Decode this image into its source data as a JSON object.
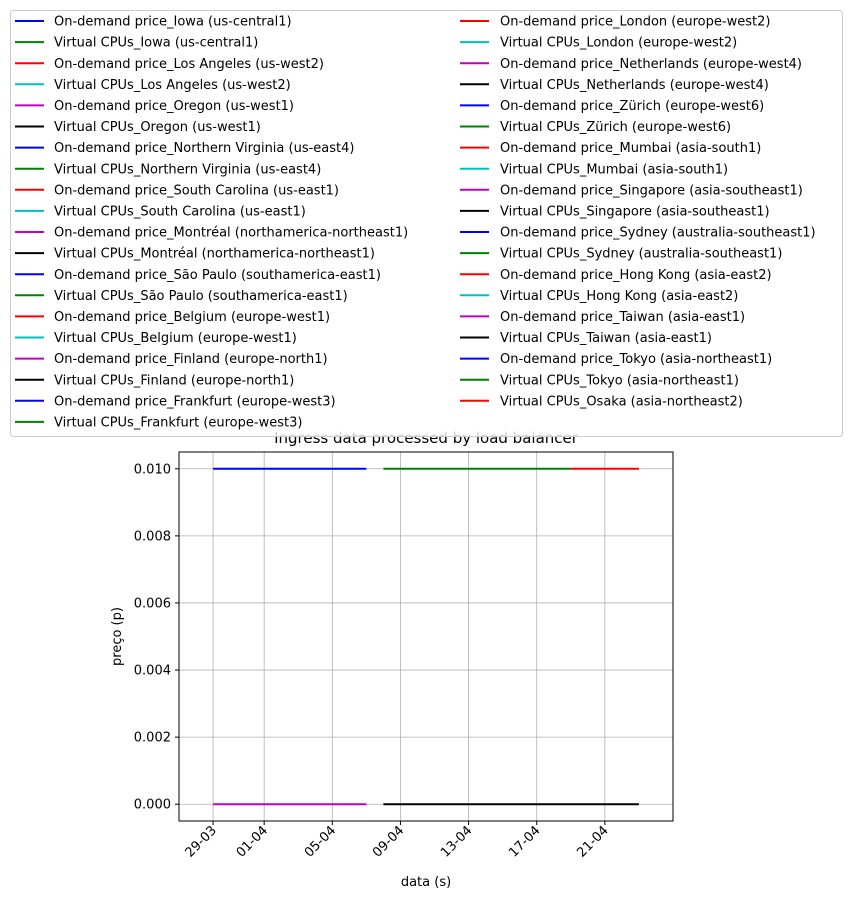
{
  "chart_data": {
    "type": "line",
    "title": "Ingress data processed by load balancer",
    "xlabel": "data (s)",
    "ylabel": "preço (p)",
    "grid": true,
    "legend_placement": "top (above plot, 2 columns)",
    "ylim": [
      -0.0005,
      0.0105
    ],
    "xlim": [
      "2021-03-27",
      "2021-04-25"
    ],
    "y_ticks": [
      0.0,
      0.002,
      0.004,
      0.006,
      0.008,
      0.01
    ],
    "y_tick_labels": [
      "0.000",
      "0.002",
      "0.004",
      "0.006",
      "0.008",
      "0.010"
    ],
    "x_ticks": [
      "2021-03-29",
      "2021-04-01",
      "2021-04-05",
      "2021-04-09",
      "2021-04-13",
      "2021-04-17",
      "2021-04-21"
    ],
    "x_tick_labels": [
      "29-03",
      "01-04",
      "05-04",
      "09-04",
      "13-04",
      "17-04",
      "21-04"
    ],
    "series": [
      {
        "name": "On-demand price_Iowa (us-central1)",
        "color": "#0000ff",
        "x": [],
        "y": []
      },
      {
        "name": "Virtual CPUs_Iowa (us-central1)",
        "color": "#008000",
        "x": [],
        "y": []
      },
      {
        "name": "On-demand price_Los Angeles (us-west2)",
        "color": "#ff0000",
        "x": [],
        "y": []
      },
      {
        "name": "Virtual CPUs_Los Angeles (us-west2)",
        "color": "#00bfbf",
        "x": [],
        "y": []
      },
      {
        "name": "On-demand price_Oregon (us-west1)",
        "color": "#bf00bf",
        "x": [],
        "y": []
      },
      {
        "name": "Virtual CPUs_Oregon (us-west1)",
        "color": "#000000",
        "x": [],
        "y": []
      },
      {
        "name": "On-demand price_Northern Virginia (us-east4)",
        "color": "#0000ff",
        "x": [],
        "y": []
      },
      {
        "name": "Virtual CPUs_Northern Virginia (us-east4)",
        "color": "#008000",
        "x": [],
        "y": []
      },
      {
        "name": "On-demand price_South Carolina (us-east1)",
        "color": "#ff0000",
        "x": [],
        "y": []
      },
      {
        "name": "Virtual CPUs_South Carolina (us-east1)",
        "color": "#00bfbf",
        "x": [],
        "y": []
      },
      {
        "name": "On-demand price_Montréal (northamerica-northeast1)",
        "color": "#bf00bf",
        "x": [
          "2021-03-29",
          "2021-04-07"
        ],
        "y": [
          0.0,
          0.0
        ]
      },
      {
        "name": "Virtual CPUs_Montréal (northamerica-northeast1)",
        "color": "#000000",
        "x": [],
        "y": []
      },
      {
        "name": "On-demand price_São Paulo (southamerica-east1)",
        "color": "#0000ff",
        "x": [
          "2021-03-29",
          "2021-04-07"
        ],
        "y": [
          0.01,
          0.01
        ]
      },
      {
        "name": "Virtual CPUs_São Paulo (southamerica-east1)",
        "color": "#008000",
        "x": [],
        "y": []
      },
      {
        "name": "On-demand price_Belgium (europe-west1)",
        "color": "#ff0000",
        "x": [],
        "y": []
      },
      {
        "name": "Virtual CPUs_Belgium (europe-west1)",
        "color": "#00bfbf",
        "x": [],
        "y": []
      },
      {
        "name": "On-demand price_Finland (europe-north1)",
        "color": "#bf00bf",
        "x": [],
        "y": []
      },
      {
        "name": "Virtual CPUs_Finland (europe-north1)",
        "color": "#000000",
        "x": [],
        "y": []
      },
      {
        "name": "On-demand price_Frankfurt (europe-west3)",
        "color": "#0000ff",
        "x": [],
        "y": []
      },
      {
        "name": "Virtual CPUs_Frankfurt (europe-west3)",
        "color": "#008000",
        "x": [
          "2021-04-08",
          "2021-04-19"
        ],
        "y": [
          0.01,
          0.01
        ]
      },
      {
        "name": "On-demand price_London (europe-west2)",
        "color": "#ff0000",
        "x": [
          "2021-04-19",
          "2021-04-23"
        ],
        "y": [
          0.01,
          0.01
        ]
      },
      {
        "name": "Virtual CPUs_London (europe-west2)",
        "color": "#00bfbf",
        "x": [],
        "y": []
      },
      {
        "name": "On-demand price_Netherlands (europe-west4)",
        "color": "#bf00bf",
        "x": [],
        "y": []
      },
      {
        "name": "Virtual CPUs_Netherlands (europe-west4)",
        "color": "#000000",
        "x": [
          "2021-04-08",
          "2021-04-23"
        ],
        "y": [
          0.0,
          0.0
        ]
      },
      {
        "name": "On-demand price_Zürich (europe-west6)",
        "color": "#0000ff",
        "x": [],
        "y": []
      },
      {
        "name": "Virtual CPUs_Zürich (europe-west6)",
        "color": "#008000",
        "x": [],
        "y": []
      },
      {
        "name": "On-demand price_Mumbai (asia-south1)",
        "color": "#ff0000",
        "x": [],
        "y": []
      },
      {
        "name": "Virtual CPUs_Mumbai (asia-south1)",
        "color": "#00bfbf",
        "x": [],
        "y": []
      },
      {
        "name": "On-demand price_Singapore (asia-southeast1)",
        "color": "#bf00bf",
        "x": [],
        "y": []
      },
      {
        "name": "Virtual CPUs_Singapore (asia-southeast1)",
        "color": "#000000",
        "x": [],
        "y": []
      },
      {
        "name": "On-demand price_Sydney (australia-southeast1)",
        "color": "#0000ff",
        "x": [],
        "y": []
      },
      {
        "name": "Virtual CPUs_Sydney (australia-southeast1)",
        "color": "#008000",
        "x": [],
        "y": []
      },
      {
        "name": "On-demand price_Hong Kong (asia-east2)",
        "color": "#ff0000",
        "x": [],
        "y": []
      },
      {
        "name": "Virtual CPUs_Hong Kong (asia-east2)",
        "color": "#00bfbf",
        "x": [],
        "y": []
      },
      {
        "name": "On-demand price_Taiwan (asia-east1)",
        "color": "#bf00bf",
        "x": [],
        "y": []
      },
      {
        "name": "Virtual CPUs_Taiwan (asia-east1)",
        "color": "#000000",
        "x": [],
        "y": []
      },
      {
        "name": "On-demand price_Tokyo (asia-northeast1)",
        "color": "#0000ff",
        "x": [],
        "y": []
      },
      {
        "name": "Virtual CPUs_Tokyo (asia-northeast1)",
        "color": "#008000",
        "x": [],
        "y": []
      },
      {
        "name": "Virtual CPUs_Osaka (asia-northeast2)",
        "color": "#ff0000",
        "x": [],
        "y": []
      }
    ]
  }
}
